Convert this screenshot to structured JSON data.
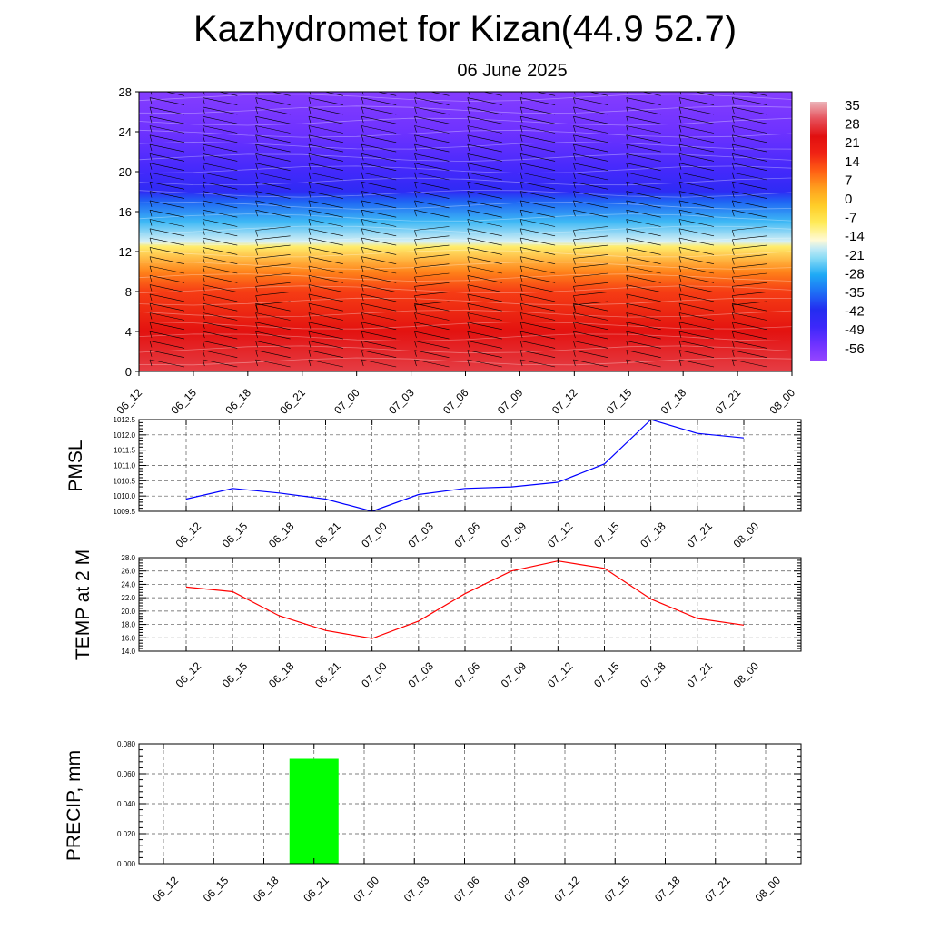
{
  "title": "Kazhydromet for Kizan(44.9 52.7)",
  "subtitle": "06 June 2025",
  "colors": {
    "pmsl_line": "#0000ff",
    "temp_line": "#ff0000",
    "precip_bar": "#00ff00"
  },
  "chart_data": [
    {
      "type": "heatmap",
      "x_labels": [
        "06_12",
        "06_15",
        "06_18",
        "06_21",
        "07_00",
        "07_03",
        "07_06",
        "07_09",
        "07_12",
        "07_15",
        "07_18",
        "07_21",
        "08_00"
      ],
      "y_ticks": [
        0,
        4,
        8,
        12,
        16,
        20,
        24,
        28
      ],
      "ylim": [
        0,
        28
      ],
      "colorbar_labels": [
        "35",
        "28",
        "21",
        "14",
        "7",
        "0",
        "-7",
        "-14",
        "-21",
        "-28",
        "-35",
        "-42",
        "-49",
        "-56"
      ],
      "colorbar_range": [
        -63,
        42
      ],
      "overlay": "wind barbs",
      "color_by_level": [
        {
          "level": 0,
          "value": 33
        },
        {
          "level": 4,
          "value": 27
        },
        {
          "level": 8,
          "value": 18
        },
        {
          "level": 10,
          "value": 10
        },
        {
          "level": 12.5,
          "value": -8
        },
        {
          "level": 13,
          "value": -16
        },
        {
          "level": 15,
          "value": -26
        },
        {
          "level": 17,
          "value": -36
        },
        {
          "level": 18,
          "value": -45
        },
        {
          "level": 20,
          "value": -50
        },
        {
          "level": 24,
          "value": -56
        },
        {
          "level": 28,
          "value": -60
        }
      ]
    },
    {
      "type": "line",
      "ylabel": "PMSL",
      "x_labels": [
        "06_12",
        "06_15",
        "06_18",
        "06_21",
        "07_00",
        "07_03",
        "07_06",
        "07_09",
        "07_12",
        "07_15",
        "07_18",
        "07_21",
        "08_00"
      ],
      "y_ticks": [
        "1009.5",
        "1010.0",
        "1010.5",
        "1011.0",
        "1011.5",
        "1012.0",
        "1012.5"
      ],
      "ylim": [
        1009.5,
        1012.5
      ],
      "grid": true,
      "values": [
        1009.9,
        1010.25,
        1010.1,
        1009.9,
        1009.5,
        1010.05,
        1010.25,
        1010.3,
        1010.45,
        1011.05,
        1012.5,
        1012.05,
        1011.9
      ]
    },
    {
      "type": "line",
      "ylabel": "TEMP at 2 M",
      "x_labels": [
        "06_12",
        "06_15",
        "06_18",
        "06_21",
        "07_00",
        "07_03",
        "07_06",
        "07_09",
        "07_12",
        "07_15",
        "07_18",
        "07_21",
        "08_00"
      ],
      "y_ticks": [
        "14.0",
        "16.0",
        "18.0",
        "20.0",
        "22.0",
        "24.0",
        "26.0",
        "28.0"
      ],
      "ylim": [
        14,
        28
      ],
      "grid": true,
      "values": [
        23.6,
        22.9,
        19.3,
        17.1,
        15.9,
        18.5,
        22.6,
        26.0,
        27.5,
        26.4,
        21.8,
        18.9,
        17.9
      ]
    },
    {
      "type": "bar",
      "ylabel": "PRECIP, mm",
      "x_labels": [
        "06_12",
        "06_15",
        "06_18",
        "06_21",
        "07_00",
        "07_03",
        "07_06",
        "07_09",
        "07_12",
        "07_15",
        "07_18",
        "07_21",
        "08_00"
      ],
      "y_ticks": [
        "0.000",
        "0.020",
        "0.040",
        "0.060",
        "0.080"
      ],
      "ylim": [
        0,
        0.08
      ],
      "grid": true,
      "values": [
        0,
        0,
        0,
        0.07,
        0,
        0,
        0,
        0,
        0,
        0,
        0,
        0,
        0
      ]
    }
  ]
}
